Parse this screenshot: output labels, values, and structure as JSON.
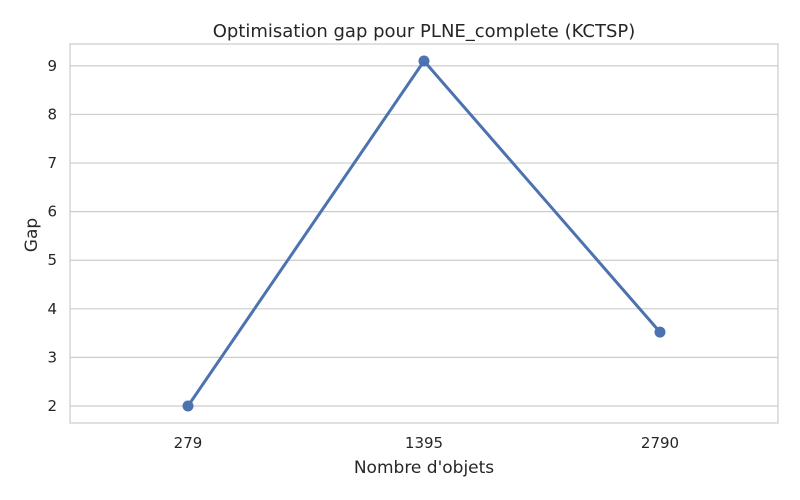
{
  "chart_data": {
    "type": "line",
    "title": "Optimisation gap pour PLNE_complete (KCTSP)",
    "xlabel": "Nombre d'objets",
    "ylabel": "Gap",
    "categories": [
      "279",
      "1395",
      "2790"
    ],
    "series": [
      {
        "values": [
          2.0,
          9.1,
          3.52
        ],
        "color": "#4c72b0"
      }
    ],
    "yticks": [
      "2",
      "3",
      "4",
      "5",
      "6",
      "7",
      "8",
      "9"
    ],
    "ylim": [
      1.65,
      9.45
    ],
    "grid": "y",
    "legend": "none"
  }
}
